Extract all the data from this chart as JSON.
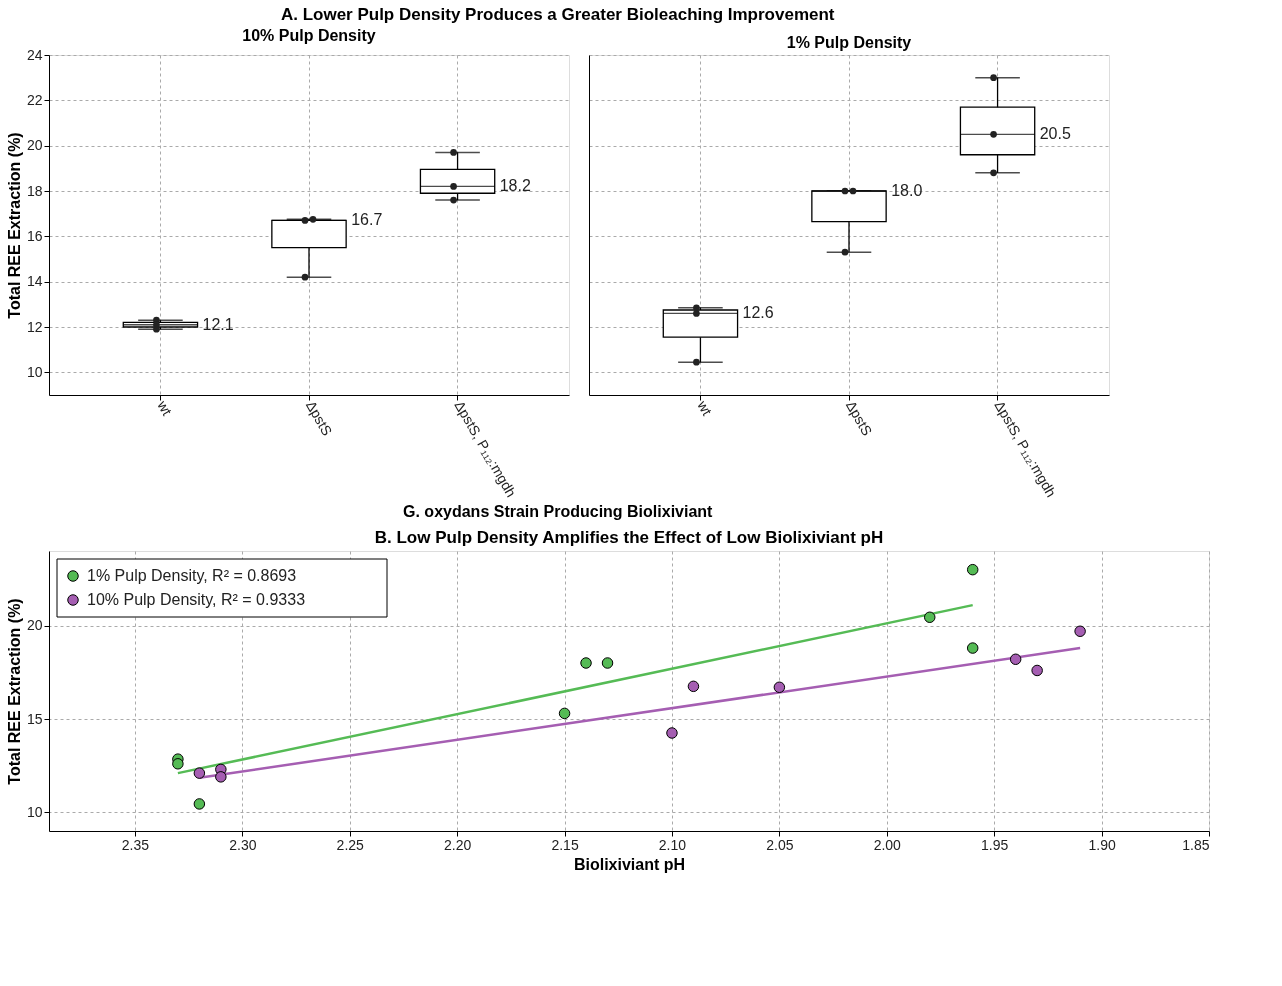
{
  "chart_data": [
    {
      "type": "box",
      "title": "A. Lower Pulp Density Produces a Greater Bioleaching Improvement",
      "subtitle": "10% Pulp Density",
      "xlabel": "G. oxydans Strain Producing Biolixiviant",
      "ylabel": "Total REE Extraction (%)",
      "categories": [
        "wt",
        "ΔpstS",
        "ΔpstS, P₁₁₂:mgdh"
      ],
      "boxes": [
        {
          "low": 11.9,
          "q1": 12.0,
          "median": 12.1,
          "q3": 12.2,
          "high": 12.3
        },
        {
          "low": 14.2,
          "q1": 15.5,
          "median": 16.7,
          "q3": 16.7,
          "high": 16.75
        },
        {
          "low": 17.6,
          "q1": 17.9,
          "median": 18.2,
          "q3": 18.95,
          "high": 19.7
        }
      ],
      "value_labels": [
        "12.1",
        "16.7",
        "18.2"
      ],
      "series": [
        {
          "type": "scatter",
          "color": "#222222",
          "x": [
            "wt",
            "wt",
            "wt",
            "ΔpstS",
            "ΔpstS",
            "ΔpstS",
            "ΔpstS, P₁₁₂:mgdh",
            "ΔpstS, P₁₁₂:mgdh",
            "ΔpstS, P₁₁₂:mgdh"
          ],
          "values": [
            12.3,
            12.1,
            11.9,
            14.2,
            16.7,
            16.75,
            19.7,
            18.2,
            17.6
          ]
        }
      ],
      "ylim": [
        9,
        24
      ],
      "yticks": [
        10,
        12,
        14,
        16,
        18,
        20,
        22,
        24
      ],
      "grid": true,
      "marker": "circle"
    },
    {
      "type": "box",
      "subtitle": "1% Pulp Density",
      "categories": [
        "wt",
        "ΔpstS",
        "ΔpstS, P₁₁₂:mgdh"
      ],
      "boxes": [
        {
          "low": 10.45,
          "q1": 11.55,
          "median": 12.6,
          "q3": 12.75,
          "high": 12.85
        },
        {
          "low": 15.3,
          "q1": 16.65,
          "median": 18.0,
          "q3": 18.0,
          "high": 18.0
        },
        {
          "low": 18.8,
          "q1": 19.6,
          "median": 20.5,
          "q3": 21.7,
          "high": 23.0
        }
      ],
      "value_labels": [
        "12.6",
        "18.0",
        "20.5"
      ],
      "series": [
        {
          "type": "scatter",
          "color": "#222222",
          "x": [
            "wt",
            "wt",
            "wt",
            "ΔpstS",
            "ΔpstS",
            "ΔpstS",
            "ΔpstS, P₁₁₂:mgdh",
            "ΔpstS, P₁₁₂:mgdh",
            "ΔpstS, P₁₁₂:mgdh"
          ],
          "values": [
            12.85,
            12.6,
            10.45,
            15.3,
            18.0,
            18.0,
            23.0,
            20.5,
            18.8
          ]
        }
      ],
      "ylim": [
        9,
        24
      ],
      "yticks": [
        10,
        12,
        14,
        16,
        18,
        20,
        22,
        24
      ],
      "grid": true,
      "tick_labels": "x",
      "marker": "circle"
    },
    {
      "type": "scatter",
      "title": "B. Low Pulp Density Amplifies the Effect of Low Biolixiviant pH",
      "xlabel": "Biolixiviant pH",
      "ylabel": "Total REE Extraction (%)",
      "series": [
        {
          "type": "line",
          "color": "#55bb55",
          "marker": "none",
          "x": [
            2.33,
            1.96
          ],
          "values": [
            12.1,
            21.1
          ]
        },
        {
          "type": "line",
          "color": "#a55eb2",
          "marker": "none",
          "x": [
            2.32,
            1.91
          ],
          "values": [
            11.85,
            18.8
          ]
        },
        {
          "type": "scatter",
          "name": "1% Pulp Density, R² = 0.8693",
          "color": "#55bb55",
          "x": [
            2.33,
            2.33,
            2.32,
            2.15,
            2.14,
            2.13,
            1.98,
            1.96,
            1.96
          ],
          "values": [
            12.85,
            12.6,
            10.45,
            15.3,
            18.0,
            18.0,
            20.45,
            23.0,
            18.8
          ]
        },
        {
          "type": "scatter",
          "name": "10% Pulp Density, R² = 0.9333",
          "color": "#a55eb2",
          "x": [
            2.32,
            2.31,
            2.31,
            2.1,
            2.09,
            2.05,
            1.94,
            1.93,
            1.91
          ],
          "values": [
            12.1,
            12.3,
            11.9,
            14.25,
            16.75,
            16.7,
            18.2,
            17.6,
            19.7
          ]
        }
      ],
      "xlim": [
        2.39,
        1.85
      ],
      "xticks": [
        2.35,
        {
          "value": 2.3,
          "label": "2.30"
        },
        2.25,
        {
          "value": 2.2,
          "label": "2.20"
        },
        2.15,
        {
          "value": 2.1,
          "label": "2.10"
        },
        2.05,
        {
          "value": 2.0,
          "label": "2.00"
        },
        1.95,
        {
          "value": 1.9,
          "label": "1.90"
        },
        1.85
      ],
      "ylim": [
        9,
        24
      ],
      "yticks": [
        10,
        15,
        20
      ],
      "grid": true,
      "legend": "top left",
      "marker": "circle"
    }
  ]
}
